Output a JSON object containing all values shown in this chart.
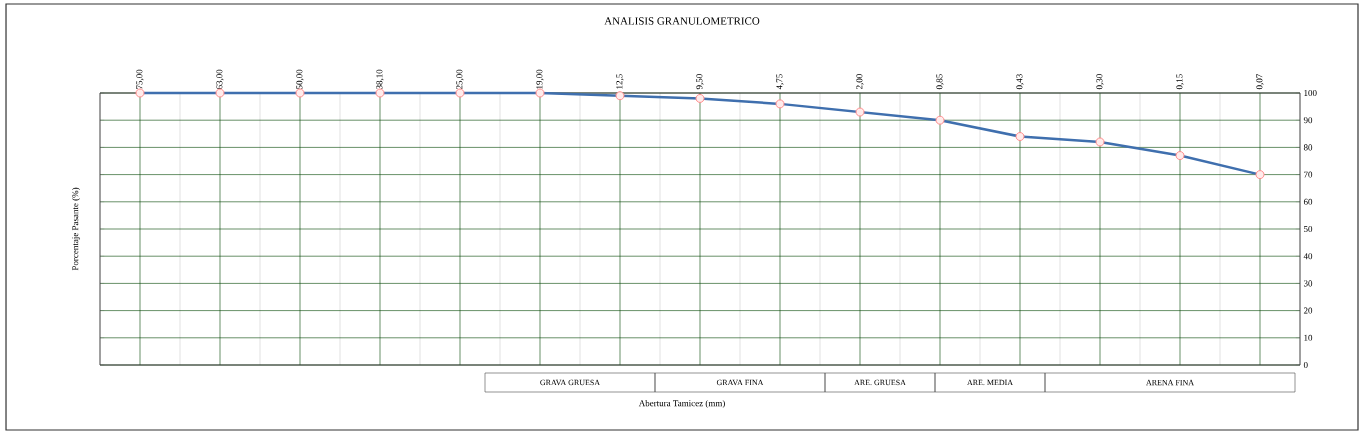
{
  "chart_data": {
    "type": "line",
    "title": "ANALISIS GRANULOMETRICO",
    "xlabel": "Abertura Tamicez (mm)",
    "ylabel": "Porcentaje Pasante (%)",
    "categories": [
      "75,00",
      "63,00",
      "50,00",
      "38,10",
      "25,00",
      "19,00",
      "12,5",
      "9,50",
      "4,75",
      "2,00",
      "0,85",
      "0,43",
      "0,30",
      "0,15",
      "0,07"
    ],
    "series": [
      {
        "color": "#3f6fae",
        "values": [
          100,
          100,
          100,
          100,
          100,
          100,
          99,
          98,
          96,
          93,
          90,
          84,
          82,
          77,
          70
        ]
      }
    ],
    "ylim": [
      0,
      100
    ],
    "yticks": [
      0,
      10,
      20,
      30,
      40,
      50,
      60,
      70,
      80,
      90,
      100
    ],
    "grid": true,
    "marker": "circle",
    "line_style": "solid",
    "annotations": [
      "GRAVA GRUESA",
      "GRAVA FINA",
      "ARE. GRUESA",
      "ARE. MEDIA",
      "ARENA FINA"
    ]
  }
}
